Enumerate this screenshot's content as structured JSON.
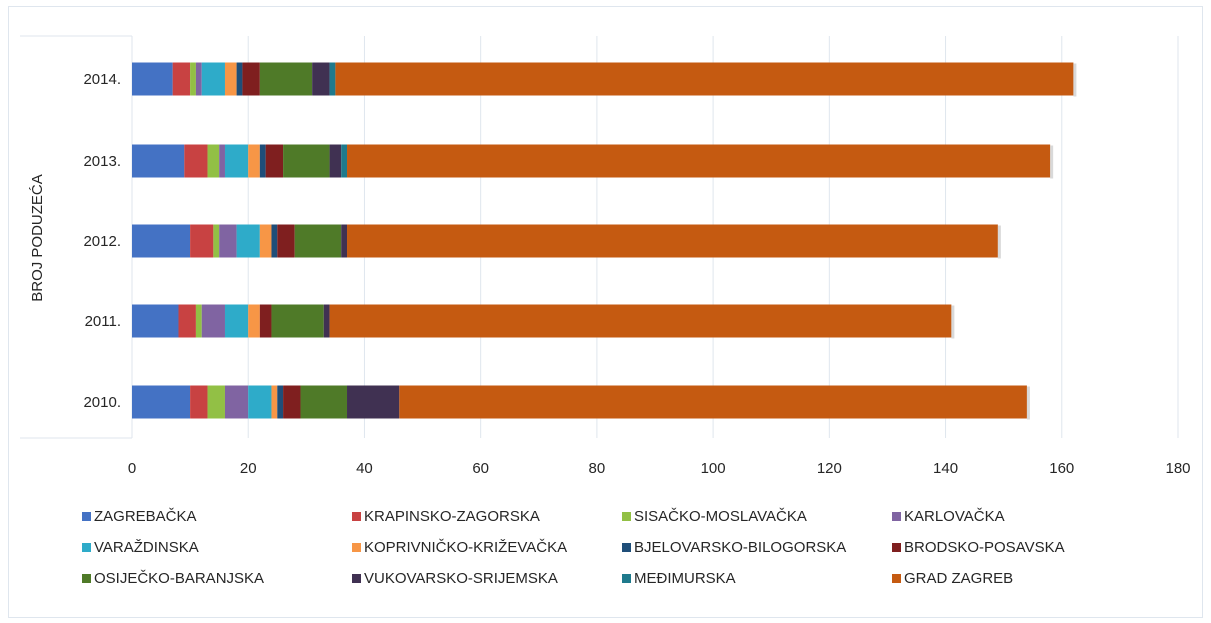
{
  "chart_data": {
    "type": "bar",
    "orientation": "horizontal",
    "stacked": true,
    "title": "",
    "xlabel": "",
    "ylabel": "BROJ PODUZEĆA",
    "xlim": [
      0,
      180
    ],
    "x_ticks": [
      "0",
      "20",
      "40",
      "60",
      "80",
      "100",
      "120",
      "140",
      "160",
      "180"
    ],
    "grid": "vertical",
    "legend_position": "bottom",
    "categories": [
      "2014.",
      "2013.",
      "2012.",
      "2011.",
      "2010."
    ],
    "series": [
      {
        "name": "ZAGREBAČKA",
        "color": "#4472c4",
        "values": [
          7,
          9,
          10,
          8,
          10
        ]
      },
      {
        "name": "KRAPINSKO-ZAGORSKA",
        "color": "#c84242",
        "values": [
          3,
          4,
          4,
          3,
          3
        ]
      },
      {
        "name": "SISAČKO-MOSLAVAČKA",
        "color": "#92c045",
        "values": [
          1,
          2,
          1,
          1,
          3
        ]
      },
      {
        "name": "KARLOVAČKA",
        "color": "#8064a2",
        "values": [
          1,
          1,
          3,
          4,
          4
        ]
      },
      {
        "name": "VARAŽDINSKA",
        "color": "#2eabc9",
        "values": [
          4,
          4,
          4,
          4,
          4
        ]
      },
      {
        "name": "KOPRIVNIČKO-KRIŽEVAČKA",
        "color": "#f79646",
        "values": [
          2,
          2,
          2,
          2,
          1
        ]
      },
      {
        "name": "BJELOVARSKO-BILOGORSKA",
        "color": "#1f4e79",
        "values": [
          1,
          1,
          1,
          0,
          1
        ]
      },
      {
        "name": "BRODSKO-POSAVSKA",
        "color": "#7f1f1f",
        "values": [
          3,
          3,
          3,
          2,
          3
        ]
      },
      {
        "name": "OSIJEČKO-BARANJSKA",
        "color": "#4f7a28",
        "values": [
          9,
          8,
          8,
          9,
          8
        ]
      },
      {
        "name": "VUKOVARSKO-SRIJEMSKA",
        "color": "#403152",
        "values": [
          3,
          2,
          1,
          1,
          9
        ]
      },
      {
        "name": "MEĐIMURSKA",
        "color": "#1f7a8c",
        "values": [
          1,
          1,
          0,
          0,
          0
        ]
      },
      {
        "name": "GRAD ZAGREB",
        "color": "#c55a11",
        "values": [
          127,
          121,
          112,
          107,
          108
        ]
      }
    ]
  }
}
